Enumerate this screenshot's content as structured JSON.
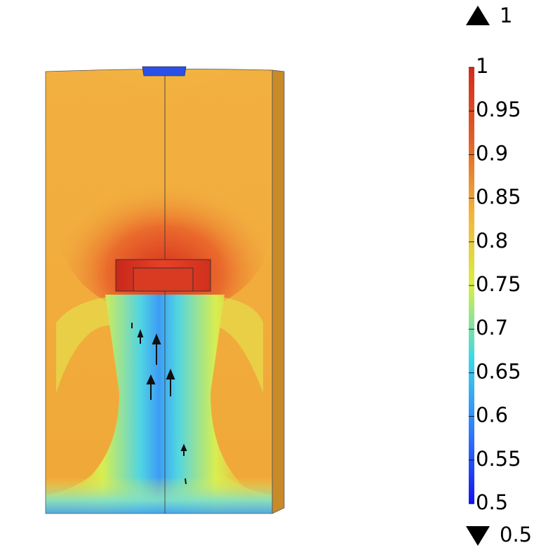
{
  "chart_data": {
    "type": "colormap",
    "ylim": [
      0.5,
      1
    ],
    "yticks": [
      1,
      0.95,
      0.9,
      0.85,
      0.8,
      0.75,
      0.7,
      0.65,
      0.6,
      0.55,
      0.5
    ],
    "max": 1,
    "min": 0.5,
    "colormap": [
      "#1414f0",
      "#2f7cff",
      "#3cd8e8",
      "#d8ee48",
      "#f2b43a",
      "#e06028",
      "#d42a1c"
    ]
  }
}
